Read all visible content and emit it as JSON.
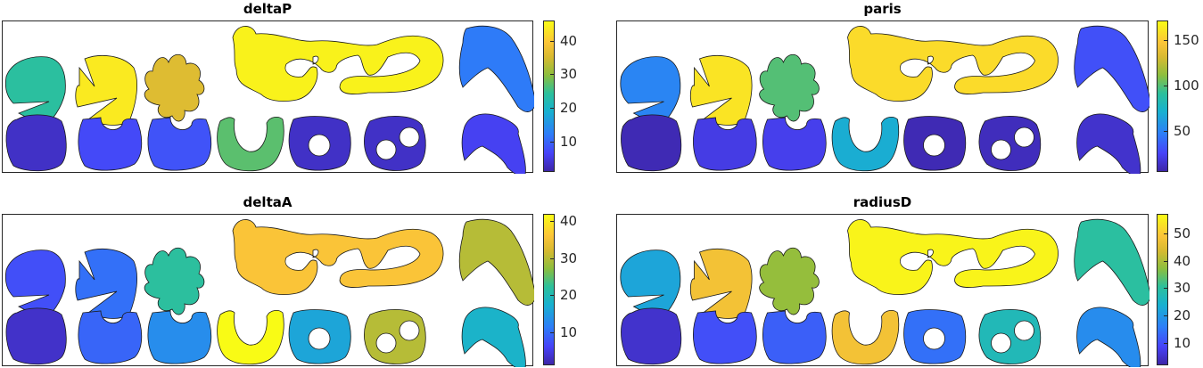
{
  "chart_data": [
    {
      "type": "heatmap",
      "title": "deltaP",
      "colorbar_ticks": [
        10,
        20,
        30,
        40
      ],
      "clim": [
        1,
        46
      ],
      "shape_values": {
        "pacman": 24,
        "pacman2": 44,
        "leaf": 36,
        "wave": 45,
        "boomerang": 12,
        "disk": 3,
        "bite1": 7,
        "bite2": 8,
        "crescent": 27,
        "ring": 3,
        "two_holes": 3,
        "chevron": 6
      }
    },
    {
      "type": "heatmap",
      "title": "paris",
      "colorbar_ticks": [
        50,
        100,
        150
      ],
      "clim": [
        5,
        172
      ],
      "shape_values": {
        "pacman": 50,
        "pacman2": 162,
        "leaf": 100,
        "wave": 158,
        "boomerang": 30,
        "disk": 8,
        "bite1": 20,
        "bite2": 22,
        "crescent": 70,
        "ring": 8,
        "two_holes": 10,
        "chevron": 14
      }
    },
    {
      "type": "heatmap",
      "title": "deltaA",
      "colorbar_ticks": [
        10,
        20,
        30,
        40
      ],
      "clim": [
        1,
        42
      ],
      "shape_values": {
        "pacman": 7,
        "pacman2": 10,
        "leaf": 22,
        "wave": 36,
        "boomerang": 30,
        "disk": 3,
        "bite1": 9,
        "bite2": 13,
        "crescent": 42,
        "ring": 16,
        "two_holes": 30,
        "chevron": 18
      }
    },
    {
      "type": "heatmap",
      "title": "radiusD",
      "colorbar_ticks": [
        10,
        20,
        30,
        40,
        50
      ],
      "clim": [
        2,
        57
      ],
      "shape_values": {
        "pacman": 22,
        "pacman2": 48,
        "leaf": 38,
        "wave": 56,
        "boomerang": 30,
        "disk": 5,
        "bite1": 10,
        "bite2": 12,
        "crescent": 48,
        "ring": 14,
        "two_holes": 27,
        "chevron": 18
      }
    }
  ]
}
